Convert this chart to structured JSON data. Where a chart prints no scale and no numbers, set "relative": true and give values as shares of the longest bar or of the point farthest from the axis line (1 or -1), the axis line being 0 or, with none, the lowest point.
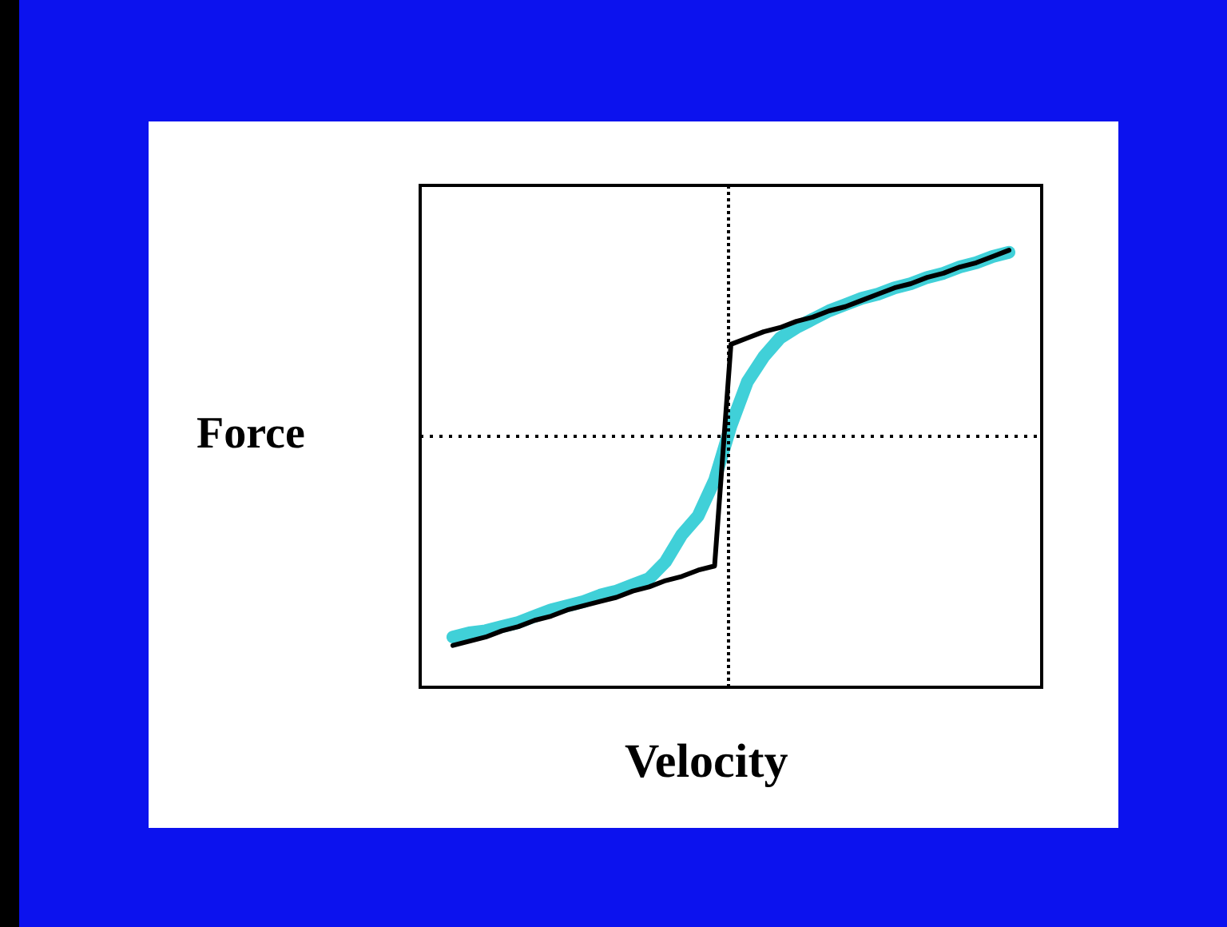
{
  "chart_data": {
    "type": "line",
    "relative": true,
    "xlabel": "Velocity",
    "ylabel": "Force",
    "categories": [
      null,
      null,
      null,
      null,
      null,
      null,
      null,
      null,
      null,
      null,
      null,
      null,
      null,
      null,
      null,
      null,
      null,
      null,
      null,
      null,
      null,
      null,
      null,
      null,
      null,
      null,
      null,
      null,
      null,
      null,
      null,
      null,
      null,
      null,
      null,
      null,
      null,
      null,
      null
    ],
    "series": [
      {
        "color": "#40d0d8",
        "values": [
          null,
          null,
          -0.96,
          -0.94,
          -0.93,
          -0.91,
          -0.89,
          -0.86,
          -0.83,
          -0.81,
          -0.79,
          -0.76,
          -0.74,
          -0.71,
          -0.68,
          -0.6,
          -0.47,
          -0.38,
          -0.21,
          0.05,
          0.26,
          0.38,
          0.47,
          0.52,
          0.56,
          0.6,
          0.63,
          0.66,
          0.68,
          0.71,
          0.73,
          0.76,
          0.78,
          0.81,
          0.83,
          0.86,
          0.88,
          null,
          null
        ]
      },
      {
        "color": "#000000",
        "values": [
          null,
          null,
          -1.0,
          -0.98,
          -0.96,
          -0.93,
          -0.91,
          -0.88,
          -0.86,
          -0.83,
          -0.81,
          -0.79,
          -0.77,
          -0.74,
          -0.72,
          -0.69,
          -0.67,
          -0.64,
          -0.62,
          0.44,
          0.47,
          0.5,
          0.52,
          0.55,
          0.57,
          0.6,
          0.62,
          0.65,
          0.68,
          0.71,
          0.73,
          0.76,
          0.78,
          0.81,
          0.83,
          0.86,
          0.89,
          null,
          null
        ]
      }
    ],
    "ref_lines": [
      {
        "axis": "y",
        "value": 0,
        "color": "#000000",
        "line_style": "dotted"
      }
    ],
    "legend": false,
    "marker": "none",
    "line_style": "solid"
  }
}
